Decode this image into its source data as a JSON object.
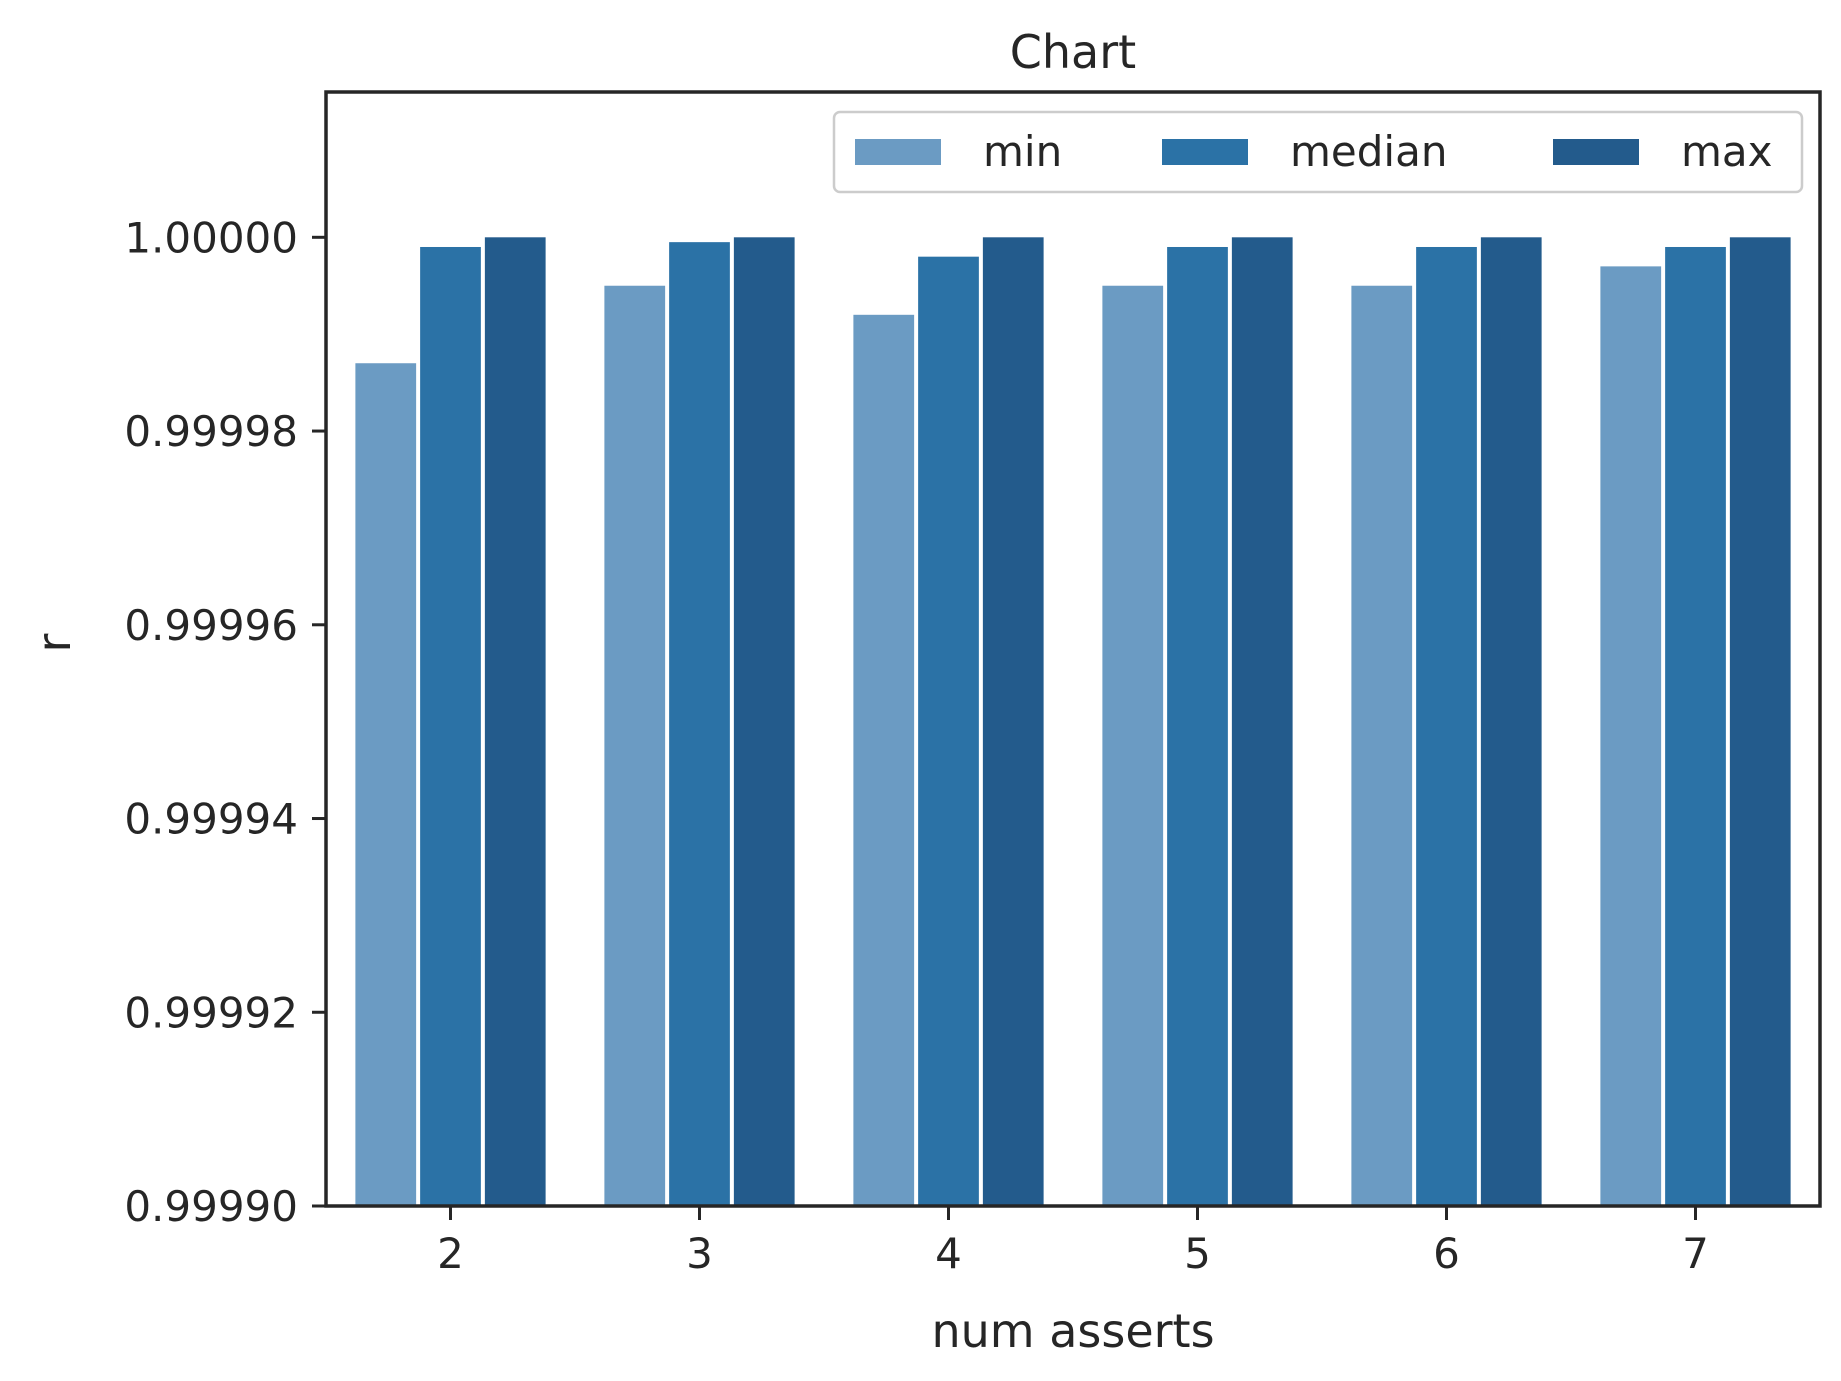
{
  "chart_data": {
    "type": "bar",
    "title": "Chart",
    "xlabel": "num asserts",
    "ylabel": "r",
    "categories": [
      "2",
      "3",
      "4",
      "5",
      "6",
      "7"
    ],
    "series": [
      {
        "name": "min",
        "color": "#6b9bc3",
        "values": [
          0.999987,
          0.999995,
          0.999992,
          0.999995,
          0.999995,
          0.999997
        ]
      },
      {
        "name": "median",
        "color": "#2b72a6",
        "values": [
          0.999999,
          0.9999995,
          0.999998,
          0.999999,
          0.999999,
          0.999999
        ]
      },
      {
        "name": "max",
        "color": "#235b8c",
        "values": [
          1.0,
          1.0,
          1.0,
          1.0,
          1.0,
          1.0
        ]
      }
    ],
    "ylim": [
      0.9999,
      1.000015
    ],
    "yticks": [
      0.9999,
      0.99992,
      0.99994,
      0.99996,
      0.99998,
      1.0
    ],
    "ytick_labels": [
      "0.99990",
      "0.99992",
      "0.99994",
      "0.99996",
      "0.99998",
      "1.00000"
    ],
    "legend": {
      "position": "top-right",
      "columns": 3
    },
    "grid": false
  }
}
